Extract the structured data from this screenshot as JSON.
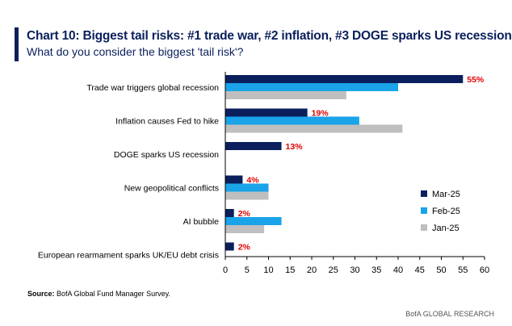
{
  "header": {
    "title": "Chart 10: Biggest tail risks: #1 trade war, #2 inflation, #3 DOGE sparks US recession",
    "subtitle": "What do you consider the biggest 'tail risk'?"
  },
  "source": {
    "label": "Source:",
    "text": " BofA Global Fund Manager Survey."
  },
  "footer": {
    "text": "BofA GLOBAL RESEARCH"
  },
  "colors": {
    "Mar-25": "#0a1f5c",
    "Feb-25": "#1aa3e8",
    "Jan-25": "#bfbfbf",
    "label": "#e00000"
  },
  "chart_data": {
    "type": "bar",
    "orientation": "horizontal",
    "categories": [
      "Trade war triggers global recession",
      "Inflation causes Fed to hike",
      "DOGE sparks US recession",
      "New geopolitical conflicts",
      "AI bubble",
      "European rearmament sparks UK/EU debt crisis"
    ],
    "series": [
      {
        "name": "Mar-25",
        "values": [
          55,
          19,
          13,
          4,
          2,
          2
        ]
      },
      {
        "name": "Feb-25",
        "values": [
          40,
          31,
          null,
          10,
          13,
          null
        ]
      },
      {
        "name": "Jan-25",
        "values": [
          28,
          41,
          null,
          10,
          9,
          null
        ]
      }
    ],
    "data_labels": [
      "55%",
      "19%",
      "13%",
      "4%",
      "2%",
      "2%"
    ],
    "xlim": [
      0,
      60
    ],
    "xticks": [
      "0",
      "5",
      "10",
      "15",
      "20",
      "25",
      "30",
      "35",
      "40",
      "45",
      "50",
      "55",
      "60"
    ],
    "legend_position": "right",
    "grid": false
  }
}
